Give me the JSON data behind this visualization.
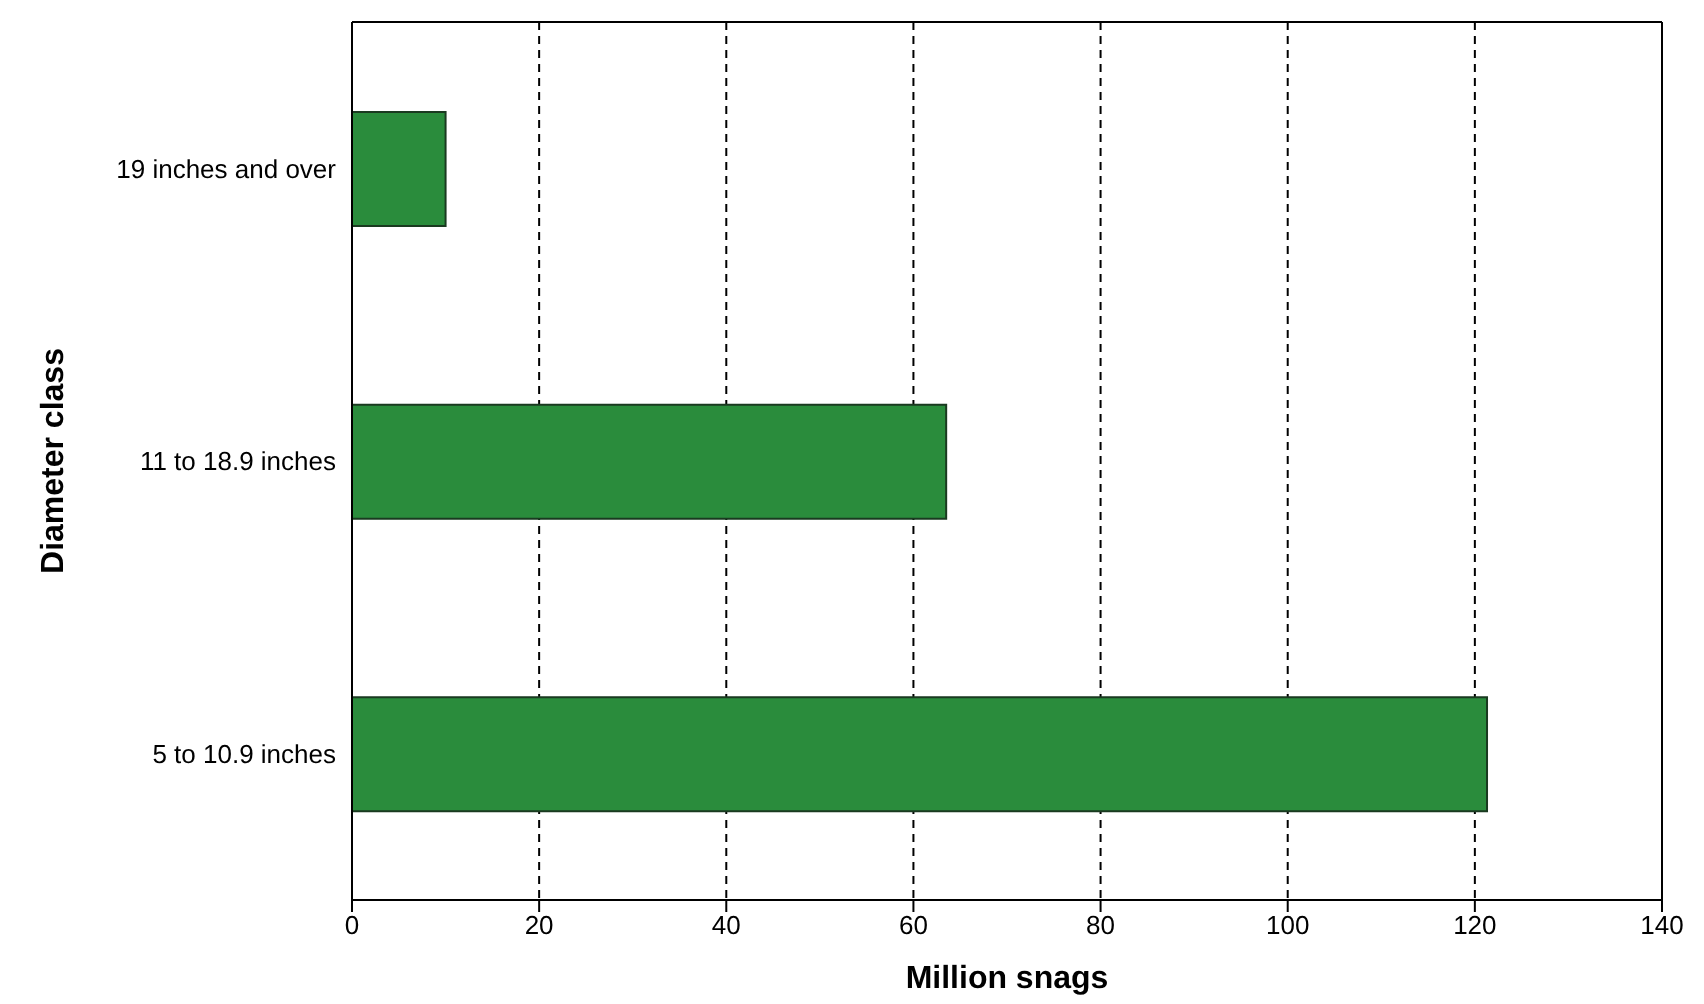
{
  "chart_data": {
    "type": "bar",
    "orientation": "horizontal",
    "xlabel": "Million snags",
    "ylabel": "Diameter class",
    "categories": [
      "19  inches and over",
      "11 to 18.9 inches",
      "5 to 10.9 inches"
    ],
    "values": [
      10,
      63.5,
      121.3
    ],
    "color": "#2a8c3c",
    "xlim": [
      0,
      140
    ],
    "xticks": [
      0,
      20,
      40,
      60,
      80,
      100,
      120,
      140
    ],
    "grid": "x"
  }
}
